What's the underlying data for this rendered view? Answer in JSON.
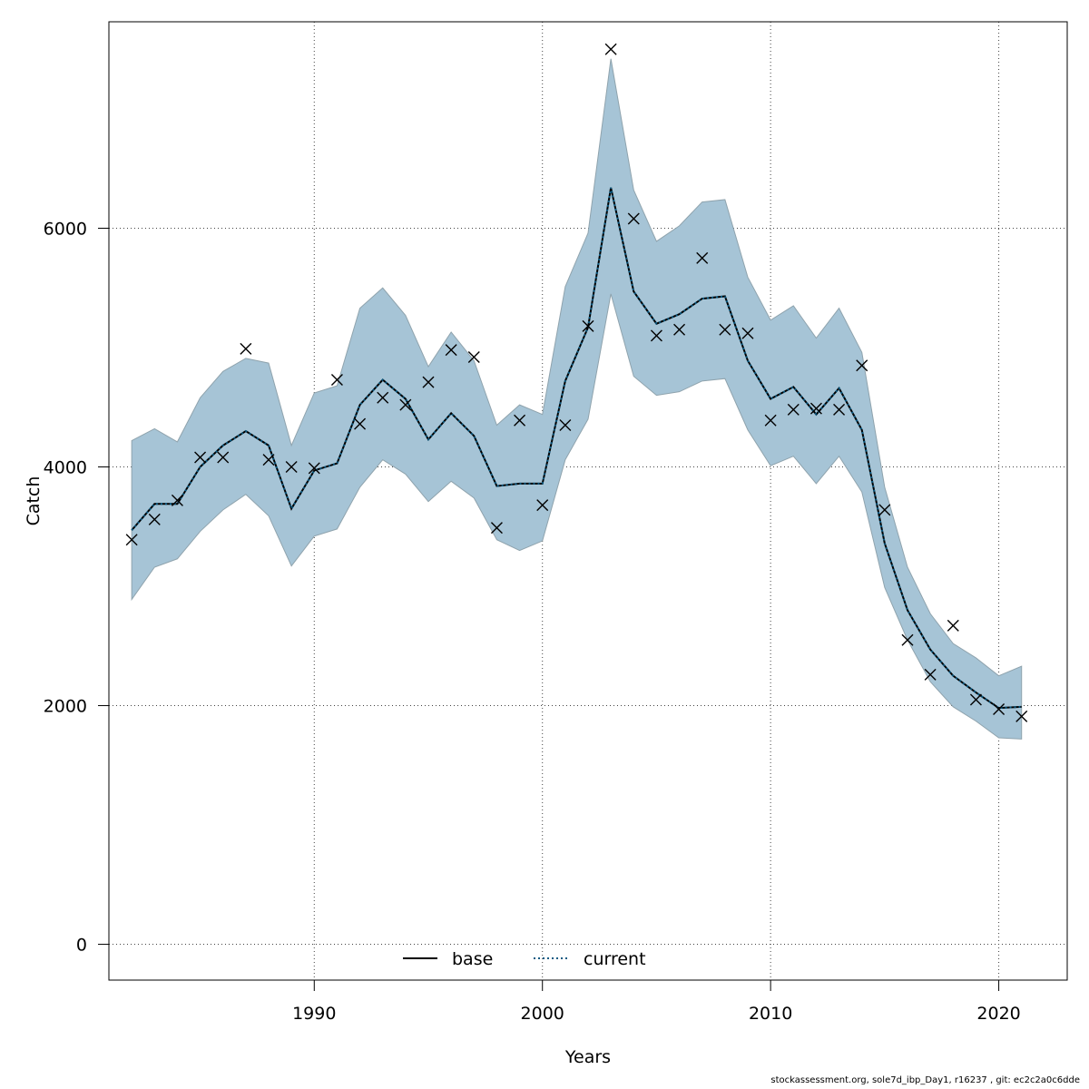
{
  "chart_data": {
    "type": "line",
    "xlabel": "Years",
    "ylabel": "Catch",
    "xlim": [
      1981,
      2023
    ],
    "ylim": [
      -300,
      7730
    ],
    "xticks": [
      1990,
      2000,
      2010,
      2020
    ],
    "yticks": [
      0,
      2000,
      4000,
      6000
    ],
    "grid": true,
    "legend_position": "bottom-center",
    "band_color": "#a6c4d6",
    "band_edge_color": "#8fa3ad",
    "x": [
      1982,
      1983,
      1984,
      1985,
      1986,
      1987,
      1988,
      1989,
      1990,
      1991,
      1992,
      1993,
      1994,
      1995,
      1996,
      1997,
      1998,
      1999,
      2000,
      2001,
      2002,
      2003,
      2004,
      2005,
      2006,
      2007,
      2008,
      2009,
      2010,
      2011,
      2012,
      2013,
      2014,
      2015,
      2016,
      2017,
      2018,
      2019,
      2020,
      2021
    ],
    "series": [
      {
        "name": "base",
        "style": "solid",
        "color": "#000000",
        "values": [
          3470,
          3690,
          3690,
          4000,
          4180,
          4300,
          4180,
          3650,
          3970,
          4030,
          4520,
          4730,
          4570,
          4230,
          4450,
          4260,
          3840,
          3860,
          3860,
          4720,
          5170,
          6340,
          5470,
          5200,
          5280,
          5410,
          5430,
          4890,
          4570,
          4670,
          4440,
          4660,
          4310,
          3360,
          2800,
          2470,
          2250,
          2110,
          1980,
          1990
        ]
      },
      {
        "name": "current",
        "style": "dotted",
        "color": "#0a5a82",
        "values": [
          3470,
          3690,
          3690,
          4000,
          4180,
          4300,
          4180,
          3650,
          3970,
          4030,
          4520,
          4730,
          4570,
          4230,
          4450,
          4260,
          3840,
          3860,
          3860,
          4720,
          5170,
          6340,
          5470,
          5200,
          5280,
          5410,
          5430,
          4890,
          4570,
          4670,
          4440,
          4660,
          4310,
          3360,
          2800,
          2470,
          2250,
          2110,
          1980,
          1990
        ]
      }
    ],
    "band": {
      "lower": [
        2890,
        3160,
        3230,
        3460,
        3640,
        3770,
        3590,
        3170,
        3420,
        3480,
        3830,
        4060,
        3940,
        3710,
        3880,
        3740,
        3390,
        3300,
        3380,
        4060,
        4400,
        5450,
        4760,
        4600,
        4630,
        4720,
        4740,
        4310,
        4010,
        4090,
        3860,
        4090,
        3790,
        2990,
        2550,
        2200,
        1990,
        1870,
        1730,
        1720
      ],
      "upper": [
        4220,
        4320,
        4210,
        4580,
        4800,
        4910,
        4870,
        4180,
        4620,
        4680,
        5330,
        5500,
        5270,
        4840,
        5130,
        4890,
        4350,
        4520,
        4440,
        5510,
        5960,
        7420,
        6320,
        5890,
        6020,
        6220,
        6240,
        5590,
        5230,
        5350,
        5080,
        5330,
        4960,
        3830,
        3160,
        2770,
        2520,
        2400,
        2250,
        2330
      ]
    },
    "observations": [
      3390,
      3560,
      3720,
      4080,
      4080,
      4990,
      4060,
      4000,
      3990,
      4730,
      4360,
      4580,
      4520,
      4710,
      4980,
      4920,
      3490,
      4390,
      3680,
      4350,
      5180,
      7500,
      6080,
      5100,
      5150,
      5750,
      5150,
      5120,
      4390,
      4480,
      4490,
      4480,
      4850,
      3640,
      2550,
      2260,
      2670,
      2050,
      1970,
      1910
    ],
    "observation_marker": "x"
  },
  "legend": {
    "base_label": "base",
    "current_label": "current"
  },
  "footer": {
    "text": "stockassessment.org, sole7d_ibp_Day1, r16237 , git: ec2c2a0c6dde"
  }
}
